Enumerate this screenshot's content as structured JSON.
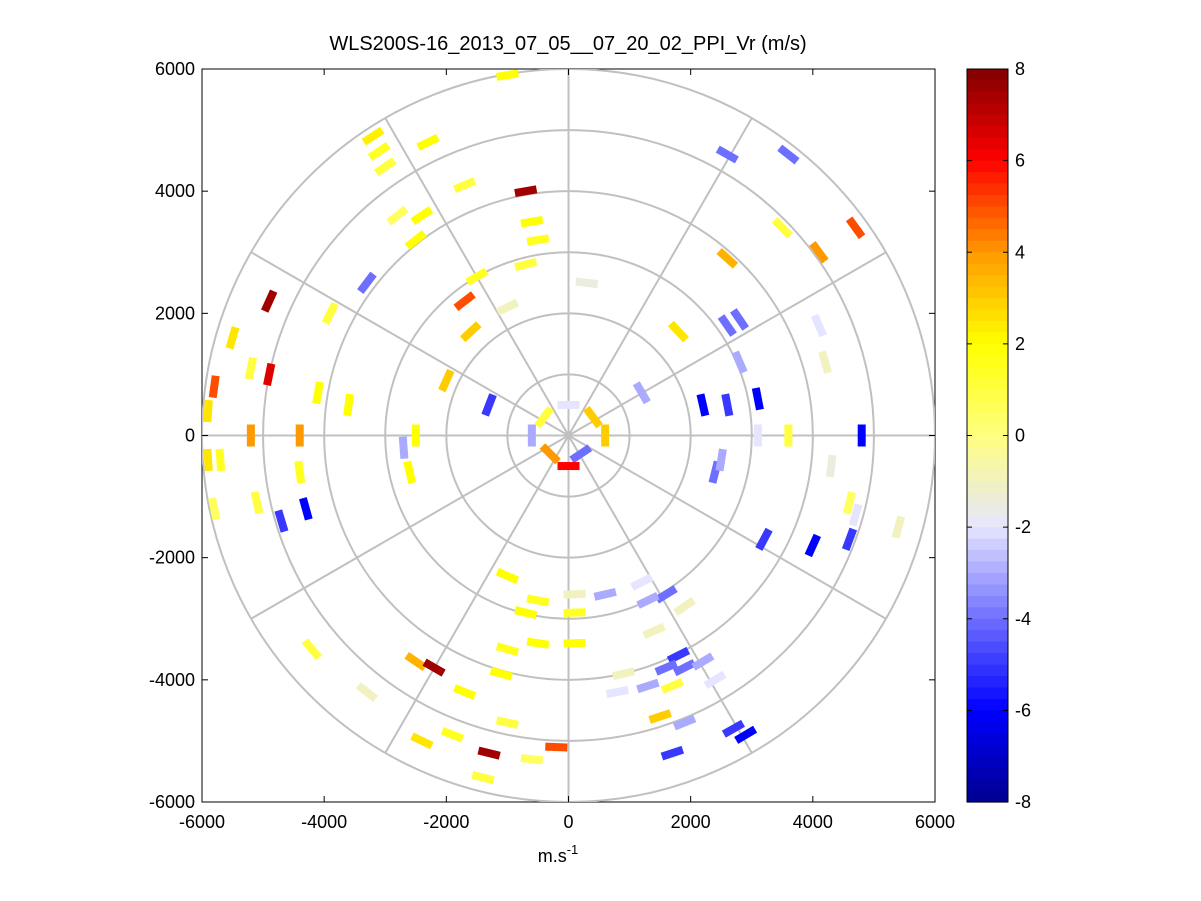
{
  "chart_data": {
    "type": "scatter",
    "subtype": "polar PPI scan (radial velocity)",
    "title": "WLS200S-16_2013_07_05__07_20_02_PPI_Vr (m/s)",
    "xlabel": "m.s",
    "xlabel_superscript": "-1",
    "ylabel": "",
    "xlim": [
      -6000,
      6000
    ],
    "ylim": [
      -6000,
      6000
    ],
    "x_ticks": [
      "-6000",
      "-4000",
      "-2000",
      "0",
      "2000",
      "4000",
      "6000"
    ],
    "y_ticks": [
      "6000",
      "4000",
      "2000",
      "0",
      "-2000",
      "-4000",
      "-6000"
    ],
    "grid": true,
    "polar_rings_m": [
      1000,
      2000,
      3000,
      4000,
      5000,
      6000
    ],
    "polar_spokes_deg": [
      0,
      30,
      60,
      90,
      120,
      150,
      180,
      210,
      240,
      270,
      300,
      330
    ],
    "colorbar": {
      "range": [
        -8,
        8
      ],
      "ticks": [
        "8",
        "6",
        "4",
        "2",
        "0",
        "-2",
        "-4",
        "-6",
        "-8"
      ],
      "colors_low_to_high": [
        "#00008f",
        "#0000ff",
        "#6f6fff",
        "#e5e5ff",
        "#ffff80",
        "#ffff00",
        "#ff9900",
        "#ff0000",
        "#800000"
      ]
    },
    "points": [
      {
        "x": -1000,
        "y": 5900,
        "v": 2
      },
      {
        "x": -3200,
        "y": 4900,
        "v": 2.3
      },
      {
        "x": -3100,
        "y": 4650,
        "v": 1.5
      },
      {
        "x": -2300,
        "y": 4800,
        "v": 2
      },
      {
        "x": -3000,
        "y": 4400,
        "v": 1
      },
      {
        "x": -1700,
        "y": 4100,
        "v": 1
      },
      {
        "x": -700,
        "y": 4000,
        "v": 7.5
      },
      {
        "x": -2800,
        "y": 3600,
        "v": 0.5
      },
      {
        "x": -2400,
        "y": 3600,
        "v": 2
      },
      {
        "x": -2500,
        "y": 3200,
        "v": 2
      },
      {
        "x": -600,
        "y": 3500,
        "v": 2
      },
      {
        "x": -500,
        "y": 3200,
        "v": 1.5
      },
      {
        "x": -700,
        "y": 2800,
        "v": 1
      },
      {
        "x": -1500,
        "y": 2600,
        "v": 1.5
      },
      {
        "x": -3300,
        "y": 2500,
        "v": -4
      },
      {
        "x": -4900,
        "y": 2200,
        "v": 7.5
      },
      {
        "x": -3900,
        "y": 2000,
        "v": 1
      },
      {
        "x": -1700,
        "y": 2200,
        "v": 5
      },
      {
        "x": -1000,
        "y": 2100,
        "v": -1
      },
      {
        "x": -1600,
        "y": 1700,
        "v": 3
      },
      {
        "x": -5500,
        "y": 1600,
        "v": 2.5
      },
      {
        "x": -5200,
        "y": 1100,
        "v": 1
      },
      {
        "x": -4900,
        "y": 1000,
        "v": 6.5
      },
      {
        "x": -5800,
        "y": 800,
        "v": 5
      },
      {
        "x": -5900,
        "y": 400,
        "v": 2.5
      },
      {
        "x": -4100,
        "y": 700,
        "v": 2
      },
      {
        "x": -3600,
        "y": 500,
        "v": 2
      },
      {
        "x": -2000,
        "y": 900,
        "v": 3
      },
      {
        "x": -1300,
        "y": 500,
        "v": -5
      },
      {
        "x": -5200,
        "y": 0,
        "v": 4
      },
      {
        "x": -4400,
        "y": 0,
        "v": 4
      },
      {
        "x": -2700,
        "y": -200,
        "v": -3
      },
      {
        "x": -2500,
        "y": 0,
        "v": 2
      },
      {
        "x": -5900,
        "y": -400,
        "v": 2.5
      },
      {
        "x": -5700,
        "y": -400,
        "v": 1.5
      },
      {
        "x": -4400,
        "y": -600,
        "v": 1.5
      },
      {
        "x": -2600,
        "y": -600,
        "v": 2
      },
      {
        "x": -5800,
        "y": -1200,
        "v": 0.5
      },
      {
        "x": -5100,
        "y": -1100,
        "v": 1
      },
      {
        "x": -4700,
        "y": -1400,
        "v": -5
      },
      {
        "x": -4300,
        "y": -1200,
        "v": -6
      },
      {
        "x": -4200,
        "y": -3500,
        "v": 1
      },
      {
        "x": -3300,
        "y": -4200,
        "v": -1
      },
      {
        "x": -2500,
        "y": -3700,
        "v": 3.5
      },
      {
        "x": -2200,
        "y": -3800,
        "v": 7.5
      },
      {
        "x": -1700,
        "y": -4200,
        "v": 2
      },
      {
        "x": -1100,
        "y": -3900,
        "v": 2
      },
      {
        "x": -1000,
        "y": -3500,
        "v": 1.5
      },
      {
        "x": -2400,
        "y": -5000,
        "v": 2.5
      },
      {
        "x": -1900,
        "y": -4900,
        "v": 1.5
      },
      {
        "x": -1300,
        "y": -5200,
        "v": 7.5
      },
      {
        "x": -600,
        "y": -5300,
        "v": 0.5
      },
      {
        "x": -200,
        "y": -5100,
        "v": 5
      },
      {
        "x": -1400,
        "y": -5600,
        "v": 1
      },
      {
        "x": -1000,
        "y": -4700,
        "v": 1
      },
      {
        "x": -1000,
        "y": -2300,
        "v": 2
      },
      {
        "x": -500,
        "y": -2700,
        "v": 1.5
      },
      {
        "x": -700,
        "y": -2900,
        "v": 2
      },
      {
        "x": -500,
        "y": -3400,
        "v": 2
      },
      {
        "x": 100,
        "y": -2600,
        "v": -1
      },
      {
        "x": 100,
        "y": -2900,
        "v": 1.5
      },
      {
        "x": 100,
        "y": -3400,
        "v": 2
      },
      {
        "x": 600,
        "y": -2600,
        "v": -3
      },
      {
        "x": 1200,
        "y": -2400,
        "v": -2
      },
      {
        "x": 1600,
        "y": -2600,
        "v": -4
      },
      {
        "x": 1300,
        "y": -2700,
        "v": -3
      },
      {
        "x": 1900,
        "y": -2800,
        "v": -1
      },
      {
        "x": 1400,
        "y": -3200,
        "v": -1
      },
      {
        "x": 1800,
        "y": -3600,
        "v": -5
      },
      {
        "x": 1900,
        "y": -3800,
        "v": -4
      },
      {
        "x": 2200,
        "y": -3700,
        "v": -3
      },
      {
        "x": 2400,
        "y": -4000,
        "v": -2
      },
      {
        "x": 1300,
        "y": -4100,
        "v": -3
      },
      {
        "x": 1700,
        "y": -4100,
        "v": 1
      },
      {
        "x": 1500,
        "y": -4600,
        "v": 3
      },
      {
        "x": 1900,
        "y": -4700,
        "v": -3
      },
      {
        "x": 2700,
        "y": -4800,
        "v": -5
      },
      {
        "x": 2900,
        "y": -4900,
        "v": -6
      },
      {
        "x": 1700,
        "y": -5200,
        "v": -5
      },
      {
        "x": 800,
        "y": -4200,
        "v": -2
      },
      {
        "x": 900,
        "y": -3900,
        "v": -1
      },
      {
        "x": 1600,
        "y": -3800,
        "v": -4
      },
      {
        "x": 3200,
        "y": -1700,
        "v": -5
      },
      {
        "x": 4000,
        "y": -1800,
        "v": -6
      },
      {
        "x": 4600,
        "y": -1700,
        "v": -5
      },
      {
        "x": 4700,
        "y": -1300,
        "v": -2
      },
      {
        "x": 4600,
        "y": -1100,
        "v": 0.5
      },
      {
        "x": 5400,
        "y": -1500,
        "v": -1
      },
      {
        "x": 4300,
        "y": -500,
        "v": -1.5
      },
      {
        "x": 2400,
        "y": -600,
        "v": -4
      },
      {
        "x": 2500,
        "y": -400,
        "v": -3
      },
      {
        "x": 3600,
        "y": 0,
        "v": 1
      },
      {
        "x": 4800,
        "y": 0,
        "v": -6
      },
      {
        "x": 3100,
        "y": 0,
        "v": -2
      },
      {
        "x": 2600,
        "y": 500,
        "v": -5
      },
      {
        "x": 3100,
        "y": 600,
        "v": -6
      },
      {
        "x": 2200,
        "y": 500,
        "v": -6
      },
      {
        "x": 2800,
        "y": 1200,
        "v": -3
      },
      {
        "x": 2600,
        "y": 1800,
        "v": -4
      },
      {
        "x": 2800,
        "y": 1900,
        "v": -4
      },
      {
        "x": 4200,
        "y": 1200,
        "v": -1
      },
      {
        "x": 4100,
        "y": 1800,
        "v": -2
      },
      {
        "x": 1800,
        "y": 1700,
        "v": 2.5
      },
      {
        "x": 2600,
        "y": 2900,
        "v": 3.5
      },
      {
        "x": 3500,
        "y": 3400,
        "v": 1
      },
      {
        "x": 4100,
        "y": 3000,
        "v": 4
      },
      {
        "x": 4700,
        "y": 3400,
        "v": 5
      },
      {
        "x": 2600,
        "y": 4600,
        "v": -4
      },
      {
        "x": 3600,
        "y": 4600,
        "v": -4
      },
      {
        "x": 300,
        "y": 2500,
        "v": -1.5
      },
      {
        "x": 1200,
        "y": 700,
        "v": -3
      },
      {
        "x": 400,
        "y": 300,
        "v": 3
      },
      {
        "x": -400,
        "y": 300,
        "v": 1
      },
      {
        "x": 200,
        "y": -300,
        "v": -4
      },
      {
        "x": -300,
        "y": -300,
        "v": 4
      },
      {
        "x": 600,
        "y": 0,
        "v": 3
      },
      {
        "x": -600,
        "y": 0,
        "v": -3
      },
      {
        "x": 0,
        "y": 500,
        "v": -2
      },
      {
        "x": 0,
        "y": -500,
        "v": 6
      }
    ]
  }
}
